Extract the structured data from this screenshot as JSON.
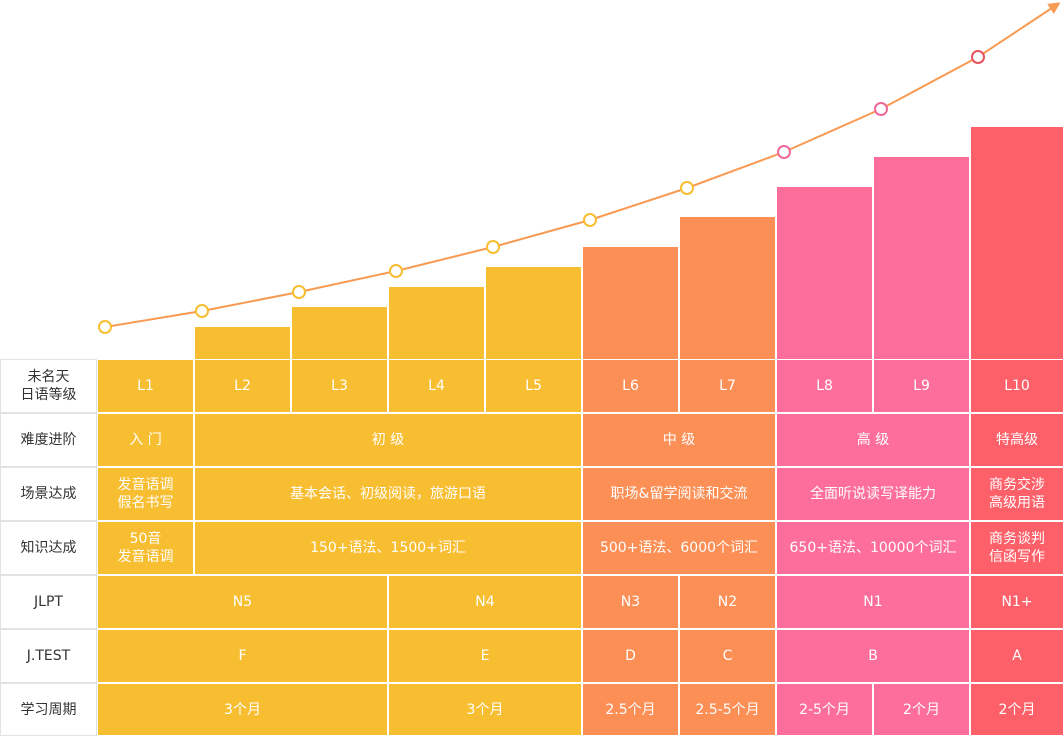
{
  "colors": {
    "beginner": "#f8be31",
    "intermediate": "#fc8f55",
    "advanced": "#fd6e9b",
    "expert": "#fd6068",
    "curve": "#f99a52",
    "grid_line": "#ffffff"
  },
  "chart_data": {
    "type": "bar",
    "categories": [
      "L1",
      "L2",
      "L3",
      "L4",
      "L5",
      "L6",
      "L7",
      "L8",
      "L9",
      "L10"
    ],
    "bar_levels": [
      1,
      2,
      3,
      4,
      5,
      6,
      7,
      8,
      9,
      10
    ],
    "curve_levels": [
      1,
      2,
      3,
      4,
      5,
      6,
      7,
      8,
      9,
      10
    ],
    "legend": "none",
    "grid": false
  },
  "rows": [
    {
      "label": "未名天\n日语等级",
      "cells": [
        {
          "text": "L1",
          "span": 1,
          "group": "beginner"
        },
        {
          "text": "L2",
          "span": 1,
          "group": "beginner"
        },
        {
          "text": "L3",
          "span": 1,
          "group": "beginner"
        },
        {
          "text": "L4",
          "span": 1,
          "group": "beginner"
        },
        {
          "text": "L5",
          "span": 1,
          "group": "beginner"
        },
        {
          "text": "L6",
          "span": 1,
          "group": "intermediate"
        },
        {
          "text": "L7",
          "span": 1,
          "group": "intermediate"
        },
        {
          "text": "L8",
          "span": 1,
          "group": "advanced"
        },
        {
          "text": "L9",
          "span": 1,
          "group": "advanced"
        },
        {
          "text": "L10",
          "span": 1,
          "group": "expert"
        }
      ]
    },
    {
      "label": "难度进阶",
      "cells": [
        {
          "text": "入 门",
          "span": 1,
          "group": "beginner"
        },
        {
          "text": "初 级",
          "span": 4,
          "group": "beginner"
        },
        {
          "text": "中 级",
          "span": 2,
          "group": "intermediate"
        },
        {
          "text": "高 级",
          "span": 2,
          "group": "advanced"
        },
        {
          "text": "特高级",
          "span": 1,
          "group": "expert"
        }
      ]
    },
    {
      "label": "场景达成",
      "cells": [
        {
          "text": "发音语调\n假名书写",
          "span": 1,
          "group": "beginner"
        },
        {
          "text": "基本会话、初级阅读，旅游口语",
          "span": 4,
          "group": "beginner"
        },
        {
          "text": "职场&留学阅读和交流",
          "span": 2,
          "group": "intermediate"
        },
        {
          "text": "全面听说读写译能力",
          "span": 2,
          "group": "advanced"
        },
        {
          "text": "商务交涉\n高级用语",
          "span": 1,
          "group": "expert"
        }
      ]
    },
    {
      "label": "知识达成",
      "cells": [
        {
          "text": "50音\n发音语调",
          "span": 1,
          "group": "beginner"
        },
        {
          "text": "150+语法、1500+词汇",
          "span": 4,
          "group": "beginner"
        },
        {
          "text": "500+语法、6000个词汇",
          "span": 2,
          "group": "intermediate"
        },
        {
          "text": "650+语法、10000个词汇",
          "span": 2,
          "group": "advanced"
        },
        {
          "text": "商务谈判\n信函写作",
          "span": 1,
          "group": "expert"
        }
      ]
    },
    {
      "label": "JLPT",
      "cells": [
        {
          "text": "N5",
          "span": 3,
          "group": "beginner"
        },
        {
          "text": "N4",
          "span": 2,
          "group": "beginner"
        },
        {
          "text": "N3",
          "span": 1,
          "group": "intermediate"
        },
        {
          "text": "N2",
          "span": 1,
          "group": "intermediate"
        },
        {
          "text": "N1",
          "span": 2,
          "group": "advanced"
        },
        {
          "text": "N1+",
          "span": 1,
          "group": "expert"
        }
      ]
    },
    {
      "label": "J.TEST",
      "cells": [
        {
          "text": "F",
          "span": 3,
          "group": "beginner"
        },
        {
          "text": "E",
          "span": 2,
          "group": "beginner"
        },
        {
          "text": "D",
          "span": 1,
          "group": "intermediate"
        },
        {
          "text": "C",
          "span": 1,
          "group": "intermediate"
        },
        {
          "text": "B",
          "span": 2,
          "group": "advanced"
        },
        {
          "text": "A",
          "span": 1,
          "group": "expert"
        }
      ]
    },
    {
      "label": "学习周期",
      "cells": [
        {
          "text": "3个月",
          "span": 3,
          "group": "beginner"
        },
        {
          "text": "3个月",
          "span": 2,
          "group": "beginner"
        },
        {
          "text": "2.5个月",
          "span": 1,
          "group": "intermediate"
        },
        {
          "text": "2.5-5个月",
          "span": 1,
          "group": "intermediate"
        },
        {
          "text": "2-5个月",
          "span": 1,
          "group": "advanced"
        },
        {
          "text": "2个月",
          "span": 1,
          "group": "advanced"
        },
        {
          "text": "2个月",
          "span": 1,
          "group": "expert"
        }
      ]
    }
  ]
}
